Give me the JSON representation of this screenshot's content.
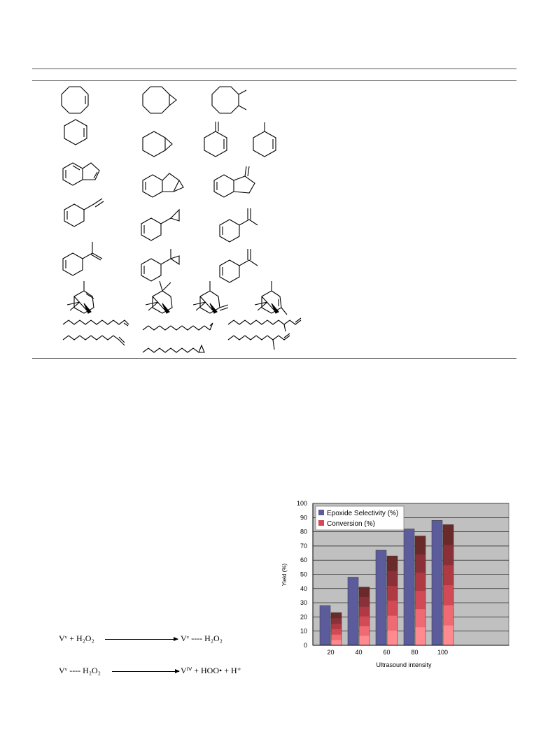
{
  "table": {
    "structures": [
      "cyclooctene",
      "cyclooctene-oxide",
      "cyclooctane-diol",
      "cyclohexene",
      "cyclohexene-oxide",
      "methylenecyclohexene",
      "methylcyclohexene",
      "indene",
      "indene-oxide",
      "methyleneindene",
      "styrene",
      "styrene-oxide",
      "alpha-methylstyrene",
      "alpha-methylstyrene-2",
      "alpha-methylstyrene-oxide",
      "alpha-methylstyrene-3",
      "alpha-pinene",
      "alpha-pinene-oxide",
      "pinene-product-1",
      "pinene-product-2",
      "dodecene",
      "dodecene-oxide",
      "branched-dodecene",
      "octene",
      "octene-oxide",
      "branched-octene"
    ]
  },
  "scheme": {
    "eq1": {
      "left": "Vᵛ + H₂O₂",
      "right": "Vᵛ ---- H₂O₂"
    },
    "eq2": {
      "left": "Vᵛ ---- H₂O₂",
      "right": "Vᴵⱽ + HOO• + H⁺"
    }
  },
  "chart_data": {
    "type": "bar",
    "categories": [
      "20",
      "40",
      "60",
      "80",
      "100"
    ],
    "series": [
      {
        "name": "Epoxide Selectivity (%)",
        "values": [
          28,
          48,
          67,
          82,
          88
        ]
      },
      {
        "name": "Conversion (%)",
        "values": [
          23,
          41,
          63,
          77,
          85
        ]
      }
    ],
    "xlabel": "Ultrasound intensity",
    "ylabel": "Yield (%)",
    "ylim": [
      0,
      100
    ],
    "yticks": [
      0,
      10,
      20,
      30,
      40,
      50,
      60,
      70,
      80,
      90,
      100
    ],
    "grid": true,
    "legend": "top-left",
    "colors": {
      "selectivity": "#5c5c9c",
      "conversion_bottom": "#ff7f86",
      "conversion_top": "#6a2a2a",
      "plot_bg": "#c0c0c0"
    }
  }
}
